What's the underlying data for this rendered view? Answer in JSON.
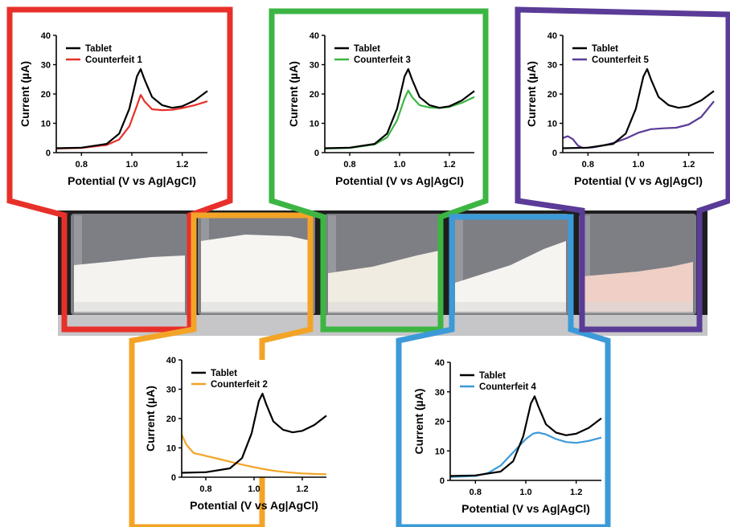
{
  "figure": {
    "xlabel": "Potential (V vs Ag|AgCl)",
    "ylabel": "Current (µA)",
    "x_ticks": [
      "0.8",
      "1.0",
      "1.2"
    ],
    "y_ticks": [
      "0",
      "10",
      "20",
      "30",
      "40"
    ]
  },
  "vials": [
    {
      "name": "vial-counterfeit-1",
      "powder": "#f4f3ef"
    },
    {
      "name": "vial-counterfeit-2",
      "powder": "#f6f5f1"
    },
    {
      "name": "vial-counterfeit-3",
      "powder": "#f1ece2"
    },
    {
      "name": "vial-counterfeit-4",
      "powder": "#f5f4f0"
    },
    {
      "name": "vial-counterfeit-5",
      "powder": "#efcfc6"
    }
  ],
  "chart_data": [
    {
      "type": "line",
      "xlabel": "Potential (V vs Ag|AgCl)",
      "ylabel": "Current (µA)",
      "xlim": [
        0.7,
        1.3
      ],
      "ylim": [
        0,
        40
      ],
      "legend": "top-left",
      "frame_color": "#e8302a",
      "series": [
        {
          "name": "Tablet",
          "color": "#000000",
          "points": [
            [
              0.7,
              1.5
            ],
            [
              0.8,
              1.7
            ],
            [
              0.9,
              3.0
            ],
            [
              0.95,
              6.5
            ],
            [
              0.99,
              15
            ],
            [
              1.02,
              26
            ],
            [
              1.035,
              28.5
            ],
            [
              1.05,
              25
            ],
            [
              1.08,
              19
            ],
            [
              1.12,
              16.2
            ],
            [
              1.16,
              15.3
            ],
            [
              1.2,
              15.8
            ],
            [
              1.25,
              17.8
            ],
            [
              1.3,
              21
            ]
          ]
        },
        {
          "name": "Counterfeit 1",
          "color": "#e8302a",
          "points": [
            [
              0.7,
              1.4
            ],
            [
              0.8,
              1.6
            ],
            [
              0.9,
              2.6
            ],
            [
              0.95,
              4.5
            ],
            [
              0.99,
              9
            ],
            [
              1.02,
              16
            ],
            [
              1.035,
              19.7
            ],
            [
              1.05,
              17.5
            ],
            [
              1.08,
              14.8
            ],
            [
              1.12,
              14.5
            ],
            [
              1.16,
              14.6
            ],
            [
              1.2,
              15.2
            ],
            [
              1.25,
              16.2
            ],
            [
              1.3,
              17.5
            ]
          ]
        }
      ]
    },
    {
      "type": "line",
      "xlabel": "Potential (V vs Ag|AgCl)",
      "ylabel": "Current (µA)",
      "xlim": [
        0.7,
        1.3
      ],
      "ylim": [
        0,
        40
      ],
      "legend": "top-left",
      "frame_color": "#f3a427",
      "series": [
        {
          "name": "Tablet",
          "color": "#000000",
          "points": [
            [
              0.7,
              1.5
            ],
            [
              0.8,
              1.7
            ],
            [
              0.9,
              3.0
            ],
            [
              0.95,
              6.5
            ],
            [
              0.99,
              15
            ],
            [
              1.02,
              26
            ],
            [
              1.035,
              28.5
            ],
            [
              1.05,
              25
            ],
            [
              1.08,
              19
            ],
            [
              1.12,
              16.2
            ],
            [
              1.16,
              15.3
            ],
            [
              1.2,
              15.8
            ],
            [
              1.25,
              17.8
            ],
            [
              1.3,
              21
            ]
          ]
        },
        {
          "name": "Counterfeit 2",
          "color": "#f3a427",
          "points": [
            [
              0.7,
              14.5
            ],
            [
              0.72,
              11
            ],
            [
              0.75,
              8.2
            ],
            [
              0.8,
              7.3
            ],
            [
              0.85,
              6.3
            ],
            [
              0.9,
              5.3
            ],
            [
              0.95,
              4.3
            ],
            [
              1.0,
              3.4
            ],
            [
              1.05,
              2.6
            ],
            [
              1.1,
              2.0
            ],
            [
              1.15,
              1.6
            ],
            [
              1.2,
              1.3
            ],
            [
              1.25,
              1.1
            ],
            [
              1.3,
              1.0
            ]
          ]
        }
      ]
    },
    {
      "type": "line",
      "xlabel": "Potential (V vs Ag|AgCl)",
      "ylabel": "Current (µA)",
      "xlim": [
        0.7,
        1.3
      ],
      "ylim": [
        0,
        40
      ],
      "legend": "top-left",
      "frame_color": "#3db543",
      "series": [
        {
          "name": "Tablet",
          "color": "#000000",
          "points": [
            [
              0.7,
              1.5
            ],
            [
              0.8,
              1.7
            ],
            [
              0.9,
              3.0
            ],
            [
              0.95,
              6.5
            ],
            [
              0.99,
              15
            ],
            [
              1.02,
              26
            ],
            [
              1.035,
              28.5
            ],
            [
              1.05,
              25
            ],
            [
              1.08,
              19
            ],
            [
              1.12,
              16.2
            ],
            [
              1.16,
              15.3
            ],
            [
              1.2,
              15.8
            ],
            [
              1.25,
              17.8
            ],
            [
              1.3,
              21
            ]
          ]
        },
        {
          "name": "Counterfeit 3",
          "color": "#3db543",
          "points": [
            [
              0.7,
              1.4
            ],
            [
              0.8,
              1.6
            ],
            [
              0.9,
              2.8
            ],
            [
              0.95,
              5.2
            ],
            [
              0.99,
              11
            ],
            [
              1.02,
              18.5
            ],
            [
              1.035,
              21.2
            ],
            [
              1.05,
              19
            ],
            [
              1.08,
              16.2
            ],
            [
              1.12,
              15.4
            ],
            [
              1.16,
              15.2
            ],
            [
              1.2,
              15.6
            ],
            [
              1.25,
              17
            ],
            [
              1.3,
              19
            ]
          ]
        }
      ]
    },
    {
      "type": "line",
      "xlabel": "Potential (V vs Ag|AgCl)",
      "ylabel": "Current (µA)",
      "xlim": [
        0.7,
        1.3
      ],
      "ylim": [
        0,
        40
      ],
      "legend": "top-left",
      "frame_color": "#3c9ad8",
      "series": [
        {
          "name": "Tablet",
          "color": "#000000",
          "points": [
            [
              0.7,
              1.5
            ],
            [
              0.8,
              1.7
            ],
            [
              0.9,
              3.0
            ],
            [
              0.95,
              6.5
            ],
            [
              0.99,
              15
            ],
            [
              1.02,
              26
            ],
            [
              1.035,
              28.5
            ],
            [
              1.05,
              25
            ],
            [
              1.08,
              19
            ],
            [
              1.12,
              16.2
            ],
            [
              1.16,
              15.3
            ],
            [
              1.2,
              15.8
            ],
            [
              1.25,
              17.8
            ],
            [
              1.3,
              21
            ]
          ]
        },
        {
          "name": "Counterfeit 4",
          "color": "#3c9ad8",
          "points": [
            [
              0.7,
              1.2
            ],
            [
              0.8,
              1.5
            ],
            [
              0.85,
              2.5
            ],
            [
              0.9,
              5
            ],
            [
              0.95,
              9.5
            ],
            [
              1.0,
              14
            ],
            [
              1.03,
              15.9
            ],
            [
              1.05,
              16.2
            ],
            [
              1.08,
              15.6
            ],
            [
              1.12,
              14
            ],
            [
              1.16,
              13
            ],
            [
              1.2,
              12.7
            ],
            [
              1.25,
              13.4
            ],
            [
              1.3,
              14.5
            ]
          ]
        }
      ]
    },
    {
      "type": "line",
      "xlabel": "Potential (V vs Ag|AgCl)",
      "ylabel": "Current (µA)",
      "xlim": [
        0.7,
        1.3
      ],
      "ylim": [
        0,
        40
      ],
      "legend": "top-left",
      "frame_color": "#5a3b97",
      "series": [
        {
          "name": "Tablet",
          "color": "#000000",
          "points": [
            [
              0.7,
              1.5
            ],
            [
              0.8,
              1.7
            ],
            [
              0.9,
              3.0
            ],
            [
              0.95,
              6.5
            ],
            [
              0.99,
              15
            ],
            [
              1.02,
              26
            ],
            [
              1.035,
              28.5
            ],
            [
              1.05,
              25
            ],
            [
              1.08,
              19
            ],
            [
              1.12,
              16.2
            ],
            [
              1.16,
              15.3
            ],
            [
              1.2,
              15.8
            ],
            [
              1.25,
              17.8
            ],
            [
              1.3,
              21
            ]
          ]
        },
        {
          "name": "Counterfeit 5",
          "color": "#5a3b97",
          "points": [
            [
              0.7,
              5
            ],
            [
              0.72,
              5.6
            ],
            [
              0.74,
              4.6
            ],
            [
              0.76,
              2.4
            ],
            [
              0.78,
              1.6
            ],
            [
              0.82,
              1.8
            ],
            [
              0.86,
              2.4
            ],
            [
              0.9,
              3.3
            ],
            [
              0.95,
              4.8
            ],
            [
              1.0,
              6.8
            ],
            [
              1.05,
              8.0
            ],
            [
              1.1,
              8.3
            ],
            [
              1.15,
              8.5
            ],
            [
              1.2,
              9.6
            ],
            [
              1.25,
              12.2
            ],
            [
              1.3,
              17.5
            ]
          ]
        }
      ]
    }
  ]
}
